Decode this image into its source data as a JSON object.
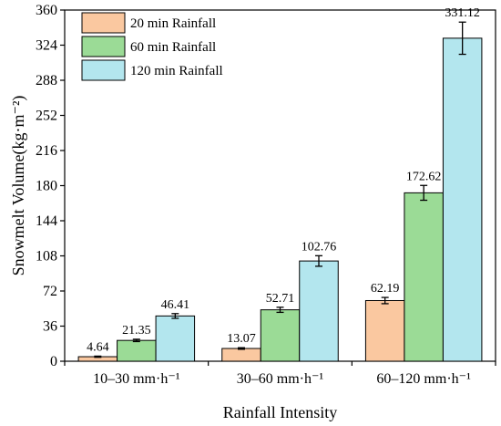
{
  "chart_data": {
    "type": "bar",
    "categories": [
      "10–30 mm·h⁻¹",
      "30–60 mm·h⁻¹",
      "60–120 mm·h⁻¹"
    ],
    "series": [
      {
        "name": "20 min Rainfall",
        "color": "#fac8a0",
        "values": [
          4.64,
          13.07,
          62.19
        ],
        "errors": [
          0.6,
          0.8,
          3.2
        ]
      },
      {
        "name": "60 min Rainfall",
        "color": "#9bdb96",
        "values": [
          21.35,
          52.71,
          172.62
        ],
        "errors": [
          1.2,
          2.6,
          7.6
        ]
      },
      {
        "name": "120 min Rainfall",
        "color": "#b3e6ee",
        "values": [
          46.41,
          102.76,
          331.12
        ],
        "errors": [
          2.4,
          5.4,
          16.5
        ]
      }
    ],
    "data_labels": [
      [
        "4.64",
        "13.07",
        "62.19"
      ],
      [
        "21.35",
        "52.71",
        "172.62"
      ],
      [
        "46.41",
        "102.76",
        "331.12"
      ]
    ],
    "xlabel": "Rainfall Intensity",
    "ylabel": "Snowmelt Volume(kg·m⁻²)",
    "ylim": [
      0,
      360
    ],
    "yticks": [
      0,
      36,
      72,
      108,
      144,
      180,
      216,
      252,
      288,
      324,
      360
    ],
    "ytick_labels": [
      "0",
      "36",
      "72",
      "108",
      "144",
      "180",
      "216",
      "252",
      "288",
      "324",
      "360"
    ],
    "grid": false,
    "legend_position": "top-left"
  }
}
